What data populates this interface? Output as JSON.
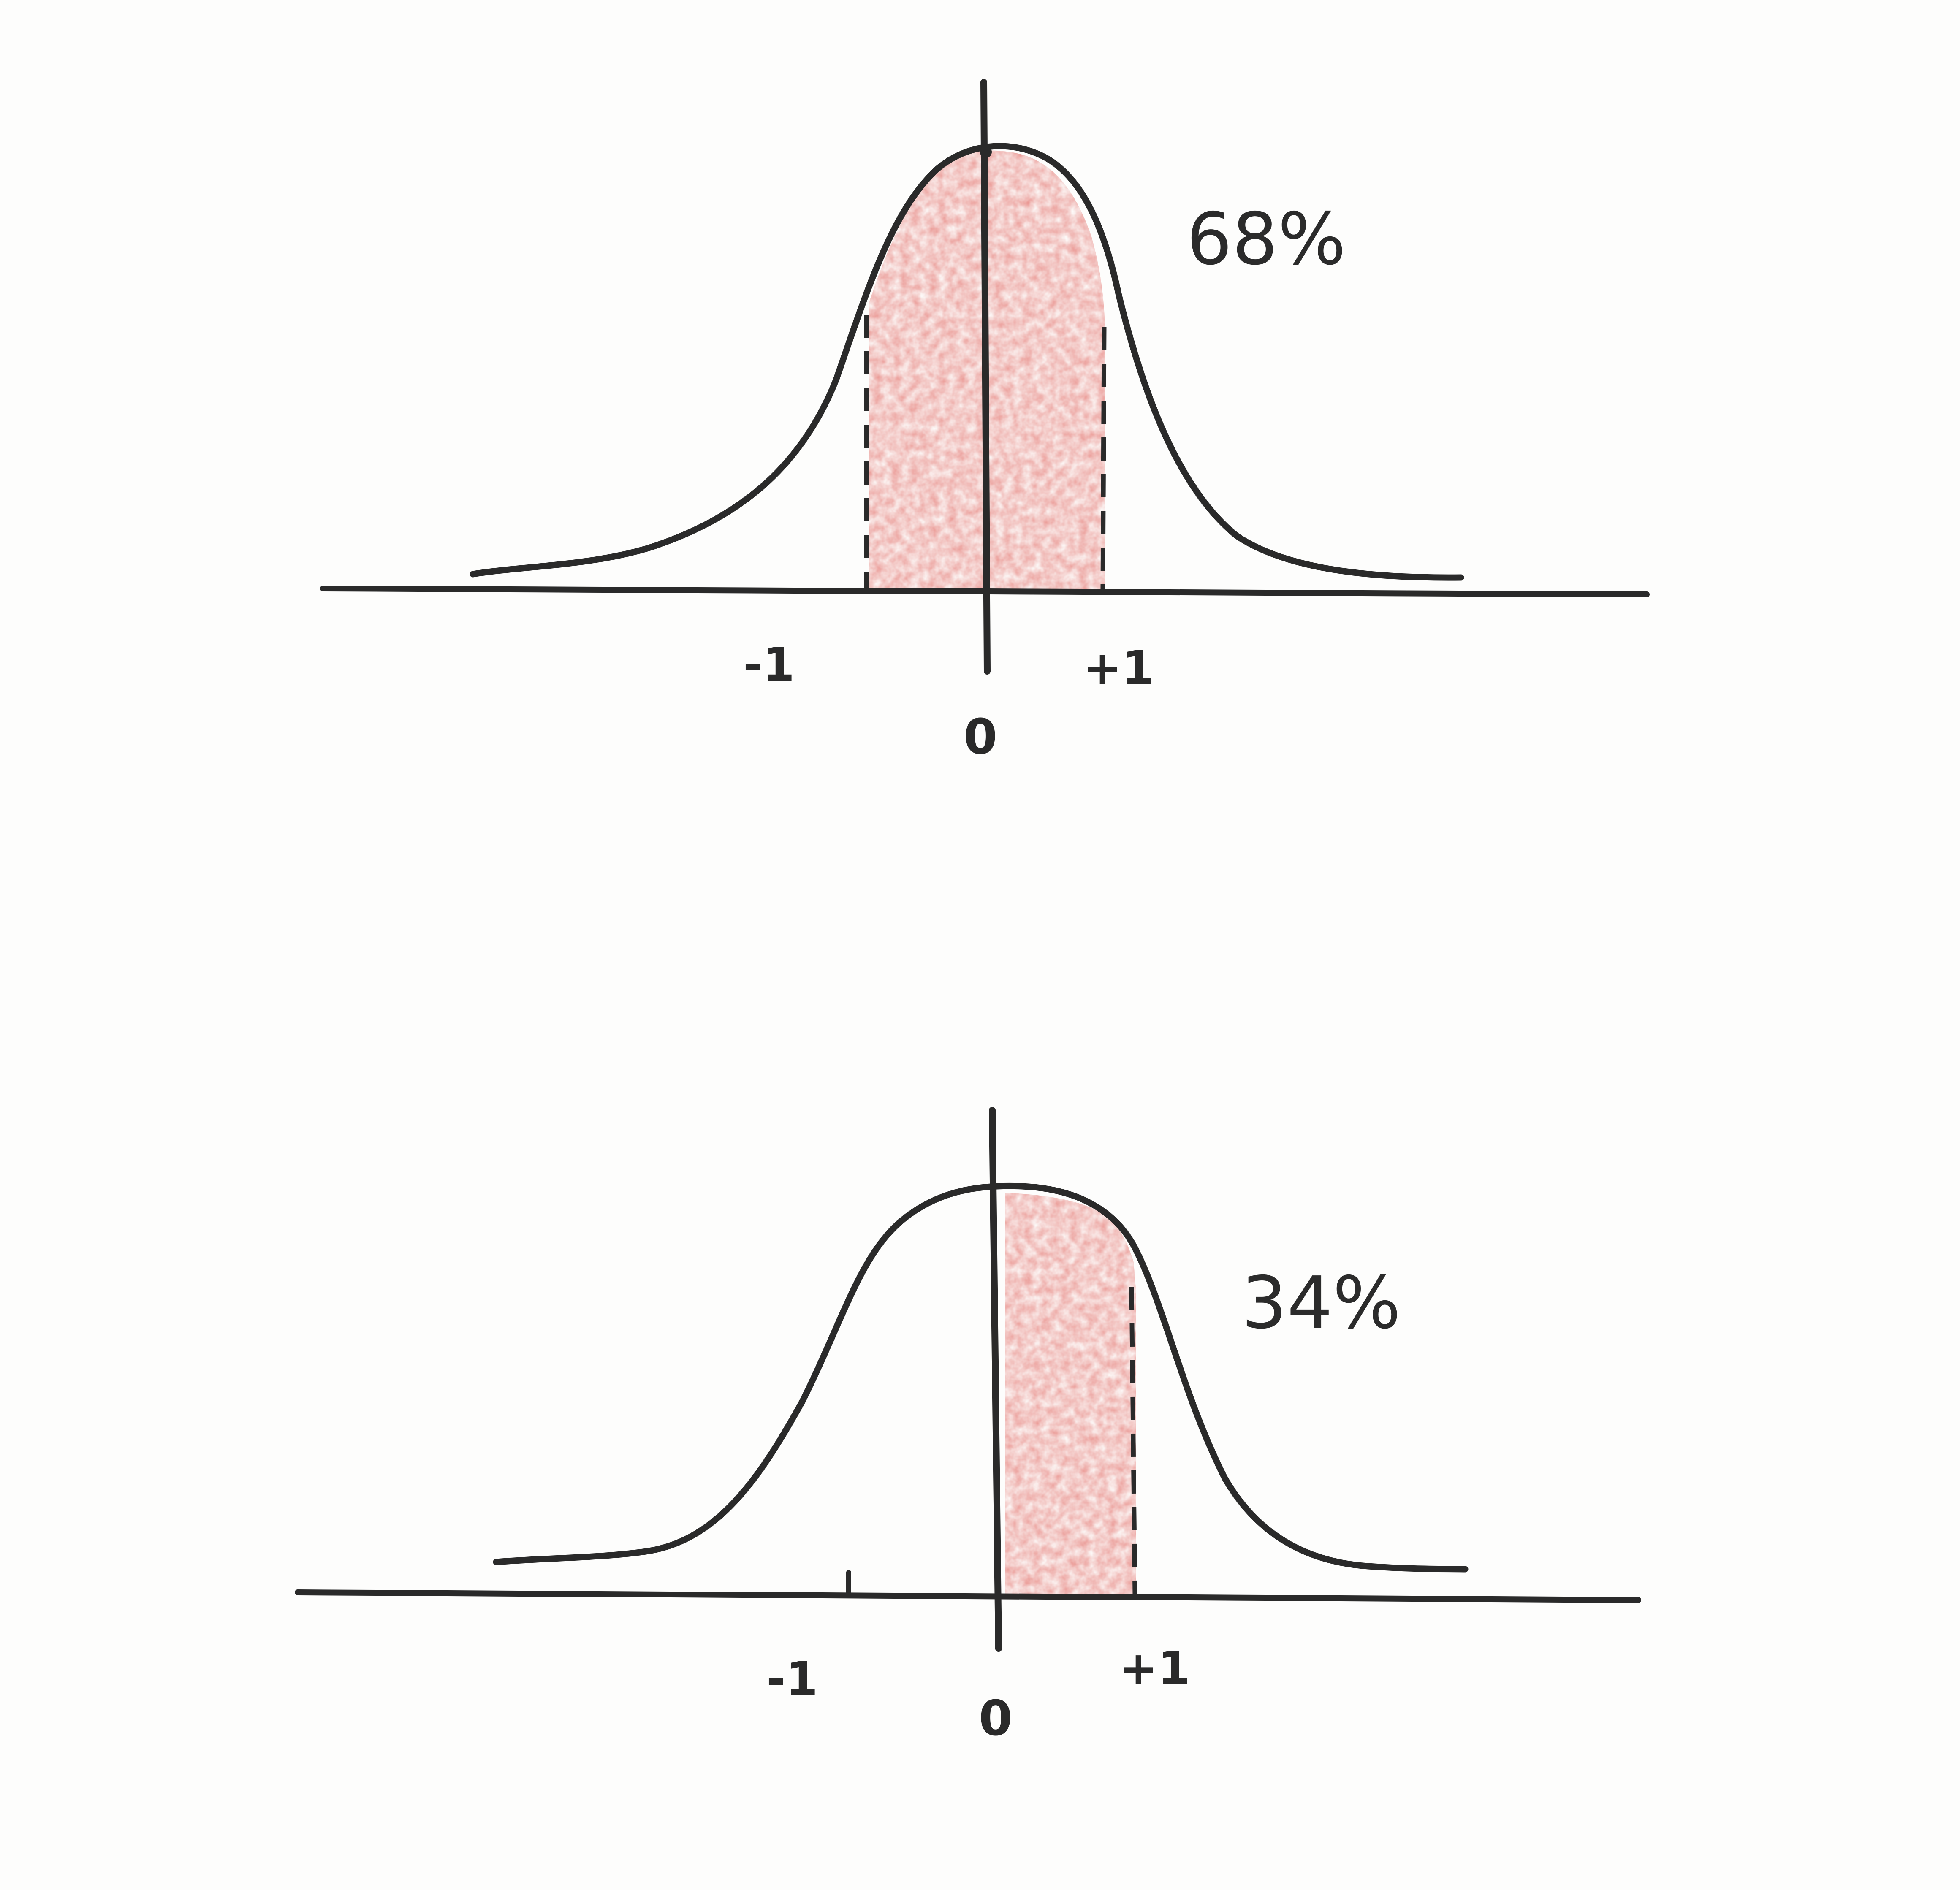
{
  "colors": {
    "ink": "#2a2a2a",
    "shade": "#e8857f",
    "paper": "#fdfdfc"
  },
  "panels": [
    {
      "shaded_from": -1,
      "shaded_to": 1,
      "percent_label": "68%",
      "tick_labels": {
        "minus_one": "-1",
        "zero": "0",
        "plus_one": "+1"
      }
    },
    {
      "shaded_from": 0,
      "shaded_to": 1,
      "percent_label": "34%",
      "tick_labels": {
        "minus_one": "-1",
        "zero": "0",
        "plus_one": "+1"
      }
    }
  ]
}
